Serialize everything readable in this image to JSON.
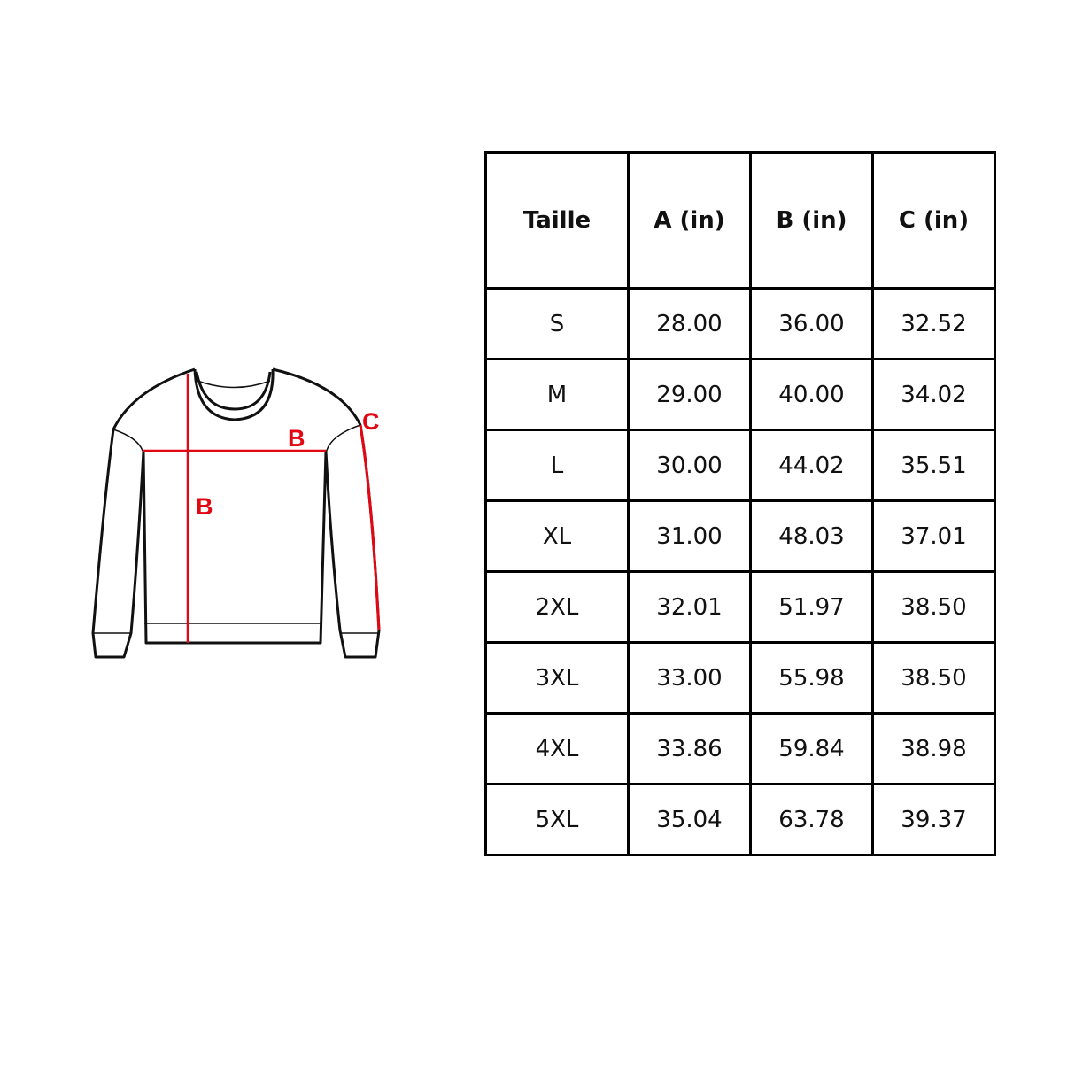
{
  "diagram": {
    "labels": {
      "width": "B",
      "length": "B",
      "sleeve": "C"
    },
    "accent_color": "#e30613"
  },
  "table": {
    "headers": [
      "Taille",
      "A (in)",
      "B (in)",
      "C (in)"
    ],
    "rows": [
      [
        "S",
        "28.00",
        "36.00",
        "32.52"
      ],
      [
        "M",
        "29.00",
        "40.00",
        "34.02"
      ],
      [
        "L",
        "30.00",
        "44.02",
        "35.51"
      ],
      [
        "XL",
        "31.00",
        "48.03",
        "37.01"
      ],
      [
        "2XL",
        "32.01",
        "51.97",
        "38.50"
      ],
      [
        "3XL",
        "33.00",
        "55.98",
        "38.50"
      ],
      [
        "4XL",
        "33.86",
        "59.84",
        "38.98"
      ],
      [
        "5XL",
        "35.04",
        "63.78",
        "39.37"
      ]
    ]
  }
}
